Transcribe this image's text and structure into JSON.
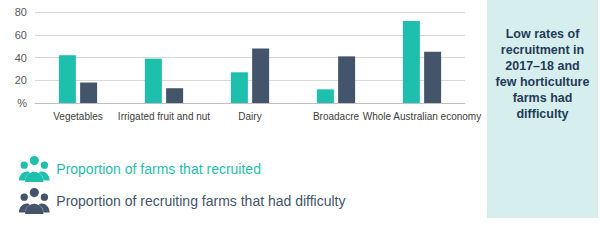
{
  "chart_data": {
    "type": "bar",
    "categories": [
      "Vegetables",
      "Irrigated fruit and nut",
      "Dairy",
      "Broadacre",
      "Whole Australian economy"
    ],
    "series": [
      {
        "name": "Proportion of farms that recruited",
        "color": "#1fbfad",
        "values": [
          42,
          39,
          27,
          12,
          72
        ]
      },
      {
        "name": "Proportion of recruiting farms that had difficulty",
        "color": "#44546a",
        "values": [
          18,
          13,
          48,
          41,
          45
        ]
      }
    ],
    "ylim": [
      0,
      80
    ],
    "yticks": [
      {
        "value": 0,
        "label": "%"
      },
      20,
      40,
      60,
      80
    ],
    "grid": true,
    "legend": "bottom-left",
    "annotation": "Low rates of recruitment in 2017–18 and few horticulture farms had difficulty"
  }
}
